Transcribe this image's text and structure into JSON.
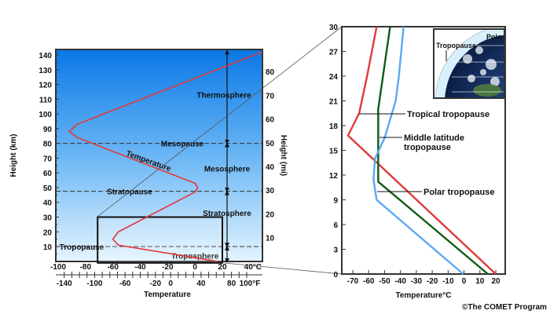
{
  "chart_data": [
    {
      "type": "line",
      "title": "",
      "xlabel": "Temperature",
      "ylabel": "Height (km)",
      "y2label": "Height (mi)",
      "x_celsius_ticks": [
        "-100",
        "-80",
        "-60",
        "-40",
        "-20",
        "0",
        "20",
        "40°C"
      ],
      "x_fahrenheit_ticks": [
        "-140",
        "-100",
        "-60",
        "-20",
        "0",
        "40",
        "80",
        "100°F"
      ],
      "y_km_ticks": [
        10,
        20,
        30,
        40,
        50,
        60,
        70,
        80,
        90,
        100,
        110,
        120,
        130,
        140
      ],
      "y_mi_ticks": [
        10,
        20,
        30,
        40,
        50,
        60,
        70,
        80
      ],
      "xlim_celsius": [
        -100,
        40
      ],
      "ylim_km": [
        0,
        143
      ],
      "series": [
        {
          "color": "#e03a3a",
          "points": [
            [
              16,
              0
            ],
            [
              -56,
              11
            ],
            [
              -60,
              15
            ],
            [
              -56,
              20
            ],
            [
              0,
              47
            ],
            [
              2,
              50
            ],
            [
              0,
              53
            ],
            [
              -86,
              84
            ],
            [
              -92,
              88
            ],
            [
              -86,
              93
            ],
            [
              49,
              142
            ]
          ]
        }
      ],
      "boundaries": [
        {
          "label": "Mesopause",
          "km": 80
        },
        {
          "label": "Stratopause",
          "km": 47.5
        },
        {
          "label": "Tropopause",
          "km": 10
        }
      ],
      "layers": [
        "Thermosphere",
        "Mesosphere",
        "Stratosphere",
        "Troposphere"
      ],
      "curve_label": "Temperature",
      "zoom_box": {
        "celsius": [
          -70,
          20
        ],
        "km": [
          0,
          30
        ]
      }
    },
    {
      "type": "line",
      "title": "",
      "xlabel": "Temperature°C",
      "ylabel": "",
      "x_ticks": [
        "-70",
        "-60",
        "-50",
        "-40",
        "-30",
        "-20",
        "-10",
        "0",
        "10",
        "20"
      ],
      "y_ticks": [
        "0",
        "3",
        "6",
        "9",
        "12",
        "15",
        "18",
        "21",
        "24",
        "27",
        "30"
      ],
      "xlim": [
        -72,
        22
      ],
      "ylim": [
        0,
        30
      ],
      "series": [
        {
          "color": "#e03a3a",
          "points": [
            [
              20,
              0
            ],
            [
              -73,
              16.8
            ],
            [
              -66,
              19.5
            ],
            [
              -61,
              24
            ],
            [
              -55,
              30
            ]
          ]
        },
        {
          "color": "#0f5a14",
          "points": [
            [
              15,
              0
            ],
            [
              -54,
              11.2
            ],
            [
              -54,
              20
            ],
            [
              -46.5,
              30
            ]
          ]
        },
        {
          "color": "#5aa8f5",
          "points": [
            [
              -0.5,
              0
            ],
            [
              -55,
              9
            ],
            [
              -57,
              11.5
            ],
            [
              -56,
              14
            ],
            [
              -50,
              16.5
            ],
            [
              -43,
              21
            ],
            [
              -41,
              24
            ],
            [
              -38,
              30
            ]
          ]
        }
      ],
      "annotations": [
        {
          "label": "Tropical tropopause",
          "line2": ""
        },
        {
          "label": "Middle latitude",
          "line2": "tropopause"
        },
        {
          "label": "Polar tropopause",
          "line2": ""
        }
      ],
      "inset": {
        "pole": "Pole",
        "tropopause": "Tropopause"
      }
    }
  ],
  "credit": "©The COMET Program"
}
